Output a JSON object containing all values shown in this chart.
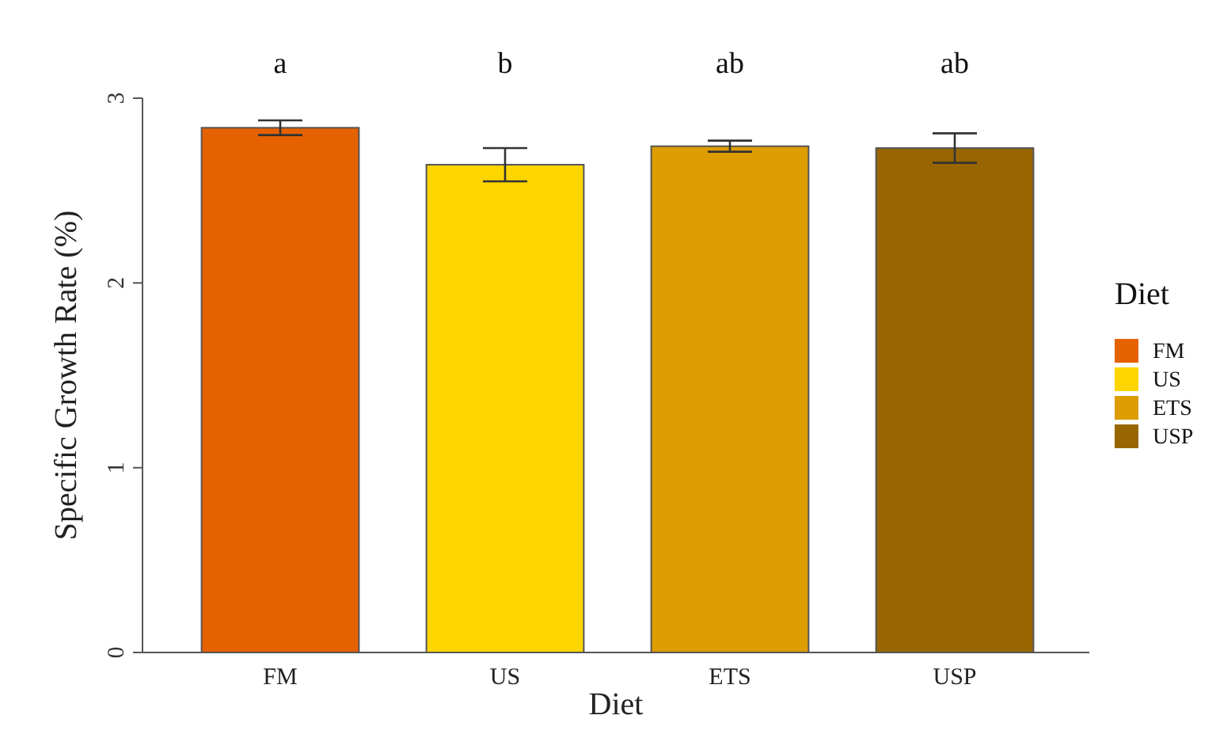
{
  "chart_data": {
    "type": "bar",
    "xlabel": "Diet",
    "ylabel": "Specific Growth Rate (%)",
    "legend_title": "Diet",
    "categories": [
      "FM",
      "US",
      "ETS",
      "USP"
    ],
    "stacked": true,
    "series": [
      {
        "name": "FM",
        "color": "#e66100",
        "values": [
          2.84,
          null,
          null,
          null
        ],
        "errors": [
          0.04,
          null,
          null,
          null
        ]
      },
      {
        "name": "US",
        "color": "#fdd600",
        "values": [
          null,
          2.64,
          null,
          null
        ],
        "errors": [
          null,
          0.09,
          null,
          null
        ]
      },
      {
        "name": "ETS",
        "color": "#dd9c00",
        "values": [
          null,
          null,
          2.74,
          null
        ],
        "errors": [
          null,
          null,
          0.03,
          null
        ]
      },
      {
        "name": "USP",
        "color": "#976600",
        "values": [
          null,
          null,
          null,
          2.73
        ],
        "errors": [
          null,
          null,
          null,
          0.08
        ]
      }
    ],
    "ylim": [
      0,
      3
    ],
    "yticks": [
      0,
      1,
      2,
      3
    ],
    "grid": false,
    "legend": "right",
    "annotations": [
      "a",
      "b",
      "ab",
      "ab"
    ]
  }
}
